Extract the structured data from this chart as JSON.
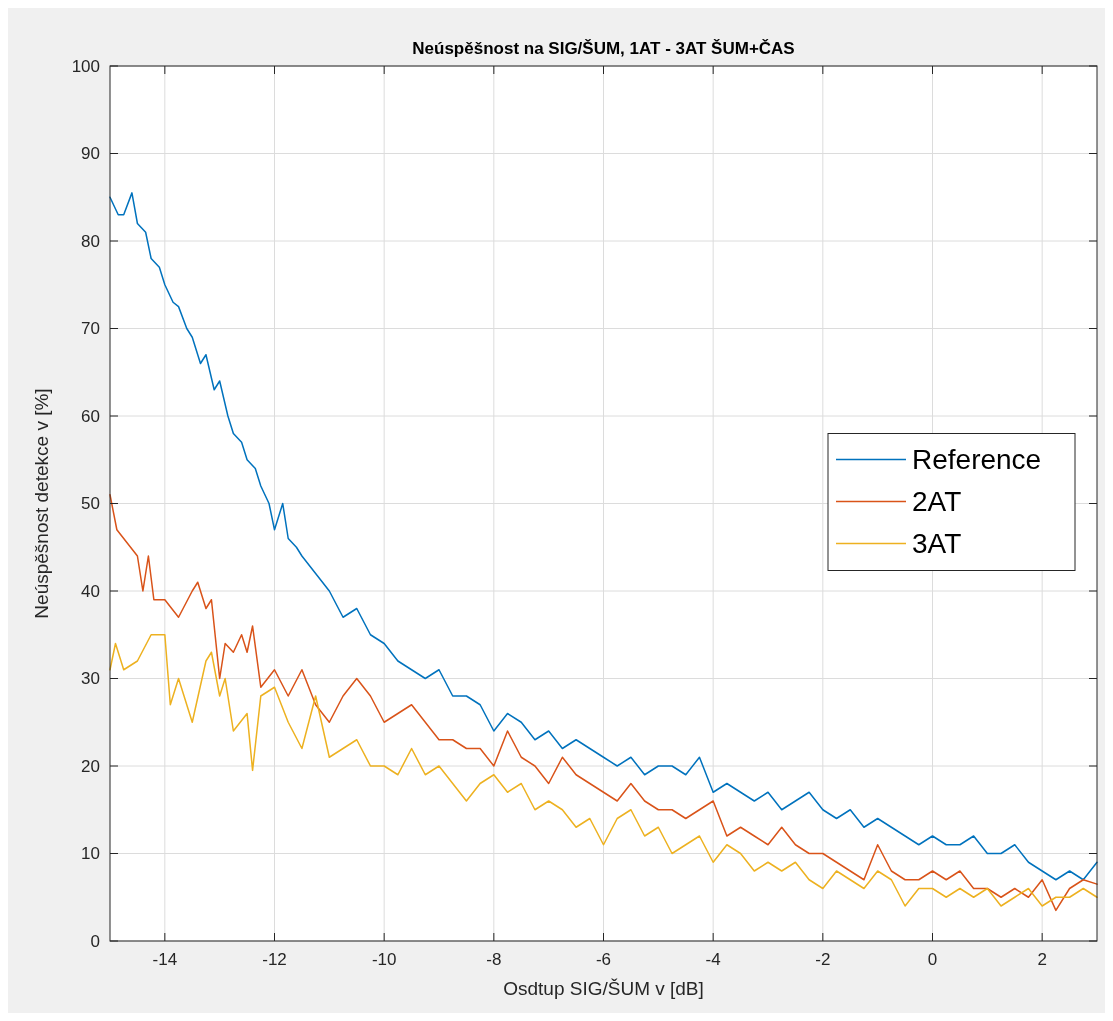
{
  "chart_data": {
    "type": "line",
    "title": "Neúspěšnost na SIG/ŠUM, 1AT - 3AT ŠUM+ČAS",
    "xlabel": "Osdtup SIG/ŠUM v [dB]",
    "ylabel": "Neúspěšnost detekce v [%]",
    "xlim": [
      -15,
      3
    ],
    "xticks": [
      -14,
      -12,
      -10,
      -8,
      -6,
      -4,
      -2,
      0,
      2
    ],
    "ylim": [
      0,
      100
    ],
    "yticks": [
      0,
      10,
      20,
      30,
      40,
      50,
      60,
      70,
      80,
      90,
      100
    ],
    "grid": true,
    "legend": "right",
    "line_style": "solid",
    "marker": "none",
    "series": [
      {
        "name": "Reference",
        "color": "#0072bd",
        "x": [
          -15,
          -14.85,
          -14.75,
          -14.6,
          -14.5,
          -14.35,
          -14.25,
          -14.1,
          -14,
          -13.85,
          -13.75,
          -13.6,
          -13.5,
          -13.35,
          -13.25,
          -13.1,
          -13,
          -12.85,
          -12.75,
          -12.6,
          -12.5,
          -12.35,
          -12.25,
          -12.1,
          -12,
          -11.85,
          -11.75,
          -11.6,
          -11.5,
          -11.25,
          -11,
          -10.75,
          -10.5,
          -10.25,
          -10,
          -9.75,
          -9.5,
          -9.25,
          -9,
          -8.75,
          -8.5,
          -8.25,
          -8,
          -7.75,
          -7.5,
          -7.25,
          -7,
          -6.75,
          -6.5,
          -6.25,
          -6,
          -5.75,
          -5.5,
          -5.25,
          -5,
          -4.75,
          -4.5,
          -4.25,
          -4,
          -3.75,
          -3.5,
          -3.25,
          -3,
          -2.75,
          -2.5,
          -2.25,
          -2,
          -1.75,
          -1.5,
          -1.25,
          -1,
          -0.75,
          -0.5,
          -0.25,
          0,
          0.25,
          0.5,
          0.75,
          1,
          1.25,
          1.5,
          1.75,
          2,
          2.25,
          2.5,
          2.75,
          3
        ],
        "values": [
          85,
          83,
          83,
          85.5,
          82,
          81,
          78,
          77,
          75,
          73,
          72.5,
          70,
          69,
          66,
          67,
          63,
          64,
          60,
          58,
          57,
          55,
          54,
          52,
          50,
          47,
          50,
          46,
          45,
          44,
          42,
          40,
          37,
          38,
          35,
          34,
          32,
          31,
          30,
          31,
          28,
          28,
          27,
          24,
          26,
          25,
          23,
          24,
          22,
          23,
          22,
          21,
          20,
          21,
          19,
          20,
          20,
          19,
          21,
          17,
          18,
          17,
          16,
          17,
          15,
          16,
          17,
          15,
          14,
          15,
          13,
          14,
          13,
          12,
          11,
          12,
          11,
          11,
          12,
          10,
          10,
          11,
          9,
          8,
          7,
          8,
          7,
          9
        ]
      },
      {
        "name": "2AT",
        "color": "#d95319",
        "x": [
          -15,
          -14.875,
          -14.75,
          -14.5,
          -14.4,
          -14.3,
          -14.2,
          -14,
          -13.75,
          -13.5,
          -13.4,
          -13.25,
          -13.15,
          -13,
          -12.9,
          -12.75,
          -12.6,
          -12.5,
          -12.4,
          -12.25,
          -12,
          -11.75,
          -11.5,
          -11.25,
          -11,
          -10.75,
          -10.5,
          -10.25,
          -10,
          -9.75,
          -9.5,
          -9.25,
          -9,
          -8.75,
          -8.5,
          -8.25,
          -8,
          -7.75,
          -7.5,
          -7.25,
          -7,
          -6.75,
          -6.5,
          -6.25,
          -6,
          -5.75,
          -5.5,
          -5.25,
          -5,
          -4.75,
          -4.5,
          -4.25,
          -4,
          -3.75,
          -3.5,
          -3.25,
          -3,
          -2.75,
          -2.5,
          -2.25,
          -2,
          -1.75,
          -1.5,
          -1.25,
          -1,
          -0.75,
          -0.5,
          -0.25,
          0,
          0.25,
          0.5,
          0.75,
          1,
          1.25,
          1.5,
          1.75,
          2,
          2.25,
          2.5,
          2.75,
          3
        ],
        "values": [
          51,
          47,
          46,
          44,
          40,
          44,
          39,
          39,
          37,
          40,
          41,
          38,
          39,
          30,
          34,
          33,
          35,
          33,
          36,
          29,
          31,
          28,
          31,
          27,
          25,
          28,
          30,
          28,
          25,
          26,
          27,
          25,
          23,
          23,
          22,
          22,
          20,
          24,
          21,
          20,
          18,
          21,
          19,
          18,
          17,
          16,
          18,
          16,
          15,
          15,
          14,
          15,
          16,
          12,
          13,
          12,
          11,
          13,
          11,
          10,
          10,
          9,
          8,
          7,
          11,
          8,
          7,
          7,
          8,
          7,
          8,
          6,
          6,
          5,
          6,
          5,
          7,
          3.5,
          6,
          7,
          6.5
        ]
      },
      {
        "name": "3AT",
        "color": "#edb120",
        "x": [
          -15,
          -14.9,
          -14.75,
          -14.5,
          -14.25,
          -14,
          -13.9,
          -13.75,
          -13.5,
          -13.25,
          -13.15,
          -13,
          -12.9,
          -12.75,
          -12.5,
          -12.4,
          -12.25,
          -12,
          -11.75,
          -11.5,
          -11.25,
          -11,
          -10.75,
          -10.5,
          -10.25,
          -10,
          -9.75,
          -9.5,
          -9.25,
          -9,
          -8.75,
          -8.5,
          -8.25,
          -8,
          -7.75,
          -7.5,
          -7.25,
          -7,
          -6.75,
          -6.5,
          -6.25,
          -6,
          -5.75,
          -5.5,
          -5.25,
          -5,
          -4.75,
          -4.5,
          -4.25,
          -4,
          -3.75,
          -3.5,
          -3.25,
          -3,
          -2.75,
          -2.5,
          -2.25,
          -2,
          -1.75,
          -1.5,
          -1.25,
          -1,
          -0.75,
          -0.5,
          -0.25,
          0,
          0.25,
          0.5,
          0.75,
          1,
          1.25,
          1.5,
          1.75,
          2,
          2.25,
          2.5,
          2.75,
          3
        ],
        "values": [
          31,
          34,
          31,
          32,
          35,
          35,
          27,
          30,
          25,
          32,
          33,
          28,
          30,
          24,
          26,
          19.5,
          28,
          29,
          25,
          22,
          28,
          21,
          22,
          23,
          20,
          20,
          19,
          22,
          19,
          20,
          18,
          16,
          18,
          19,
          17,
          18,
          15,
          16,
          15,
          13,
          14,
          11,
          14,
          15,
          12,
          13,
          10,
          11,
          12,
          9,
          11,
          10,
          8,
          9,
          8,
          9,
          7,
          6,
          8,
          7,
          6,
          8,
          7,
          4,
          6,
          6,
          5,
          6,
          5,
          6,
          4,
          5,
          6,
          4,
          5,
          5,
          6,
          5
        ]
      }
    ]
  }
}
